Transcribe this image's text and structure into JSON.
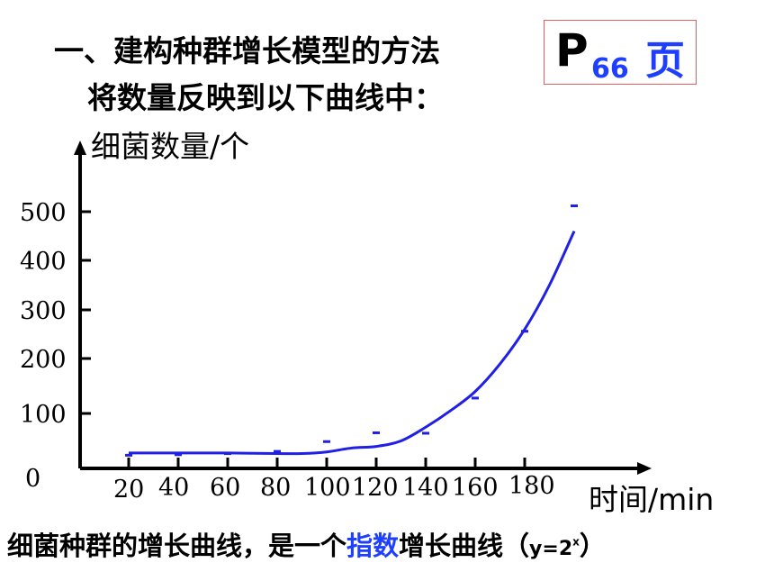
{
  "heading": {
    "line1": "一、建构种群增长模型的方法",
    "line2": "将数量反映到以下曲线中："
  },
  "page_ref": {
    "prefix": "P",
    "number": "66",
    "suffix": "页"
  },
  "caption": {
    "part1": "细菌种群的增长曲线，是一个",
    "highlight": "指数",
    "part2": "增长曲线（",
    "formula_base": "y=2",
    "formula_exp": "x",
    "close": "）"
  },
  "colors": {
    "curve": "#1f1fe6",
    "highlight": "#1f3fff",
    "box_border": "#e06060"
  },
  "chart_data": {
    "type": "line",
    "title": "",
    "ylabel": "细菌数量/个",
    "xlabel": "时间/min",
    "y_ticks": [
      "0",
      "100",
      "200",
      "300",
      "400",
      "500"
    ],
    "x_ticks": [
      "20",
      "40",
      "60",
      "80",
      "100",
      "120",
      "140",
      "160",
      "180"
    ],
    "xlim": [
      20,
      200
    ],
    "ylim": [
      0,
      600
    ],
    "points": {
      "x": [
        20,
        40,
        60,
        80,
        100,
        120,
        140,
        160,
        180,
        200
      ],
      "y": [
        1,
        2,
        4,
        8,
        16,
        32,
        64,
        128,
        256,
        512
      ]
    },
    "curve": {
      "x": [
        20,
        40,
        60,
        80,
        90,
        100,
        110,
        120,
        130,
        140,
        150,
        160,
        170,
        180,
        190,
        200
      ],
      "y": [
        28,
        28,
        28,
        27,
        27,
        30,
        37,
        40,
        50,
        75,
        105,
        140,
        190,
        260,
        350,
        460
      ]
    }
  }
}
